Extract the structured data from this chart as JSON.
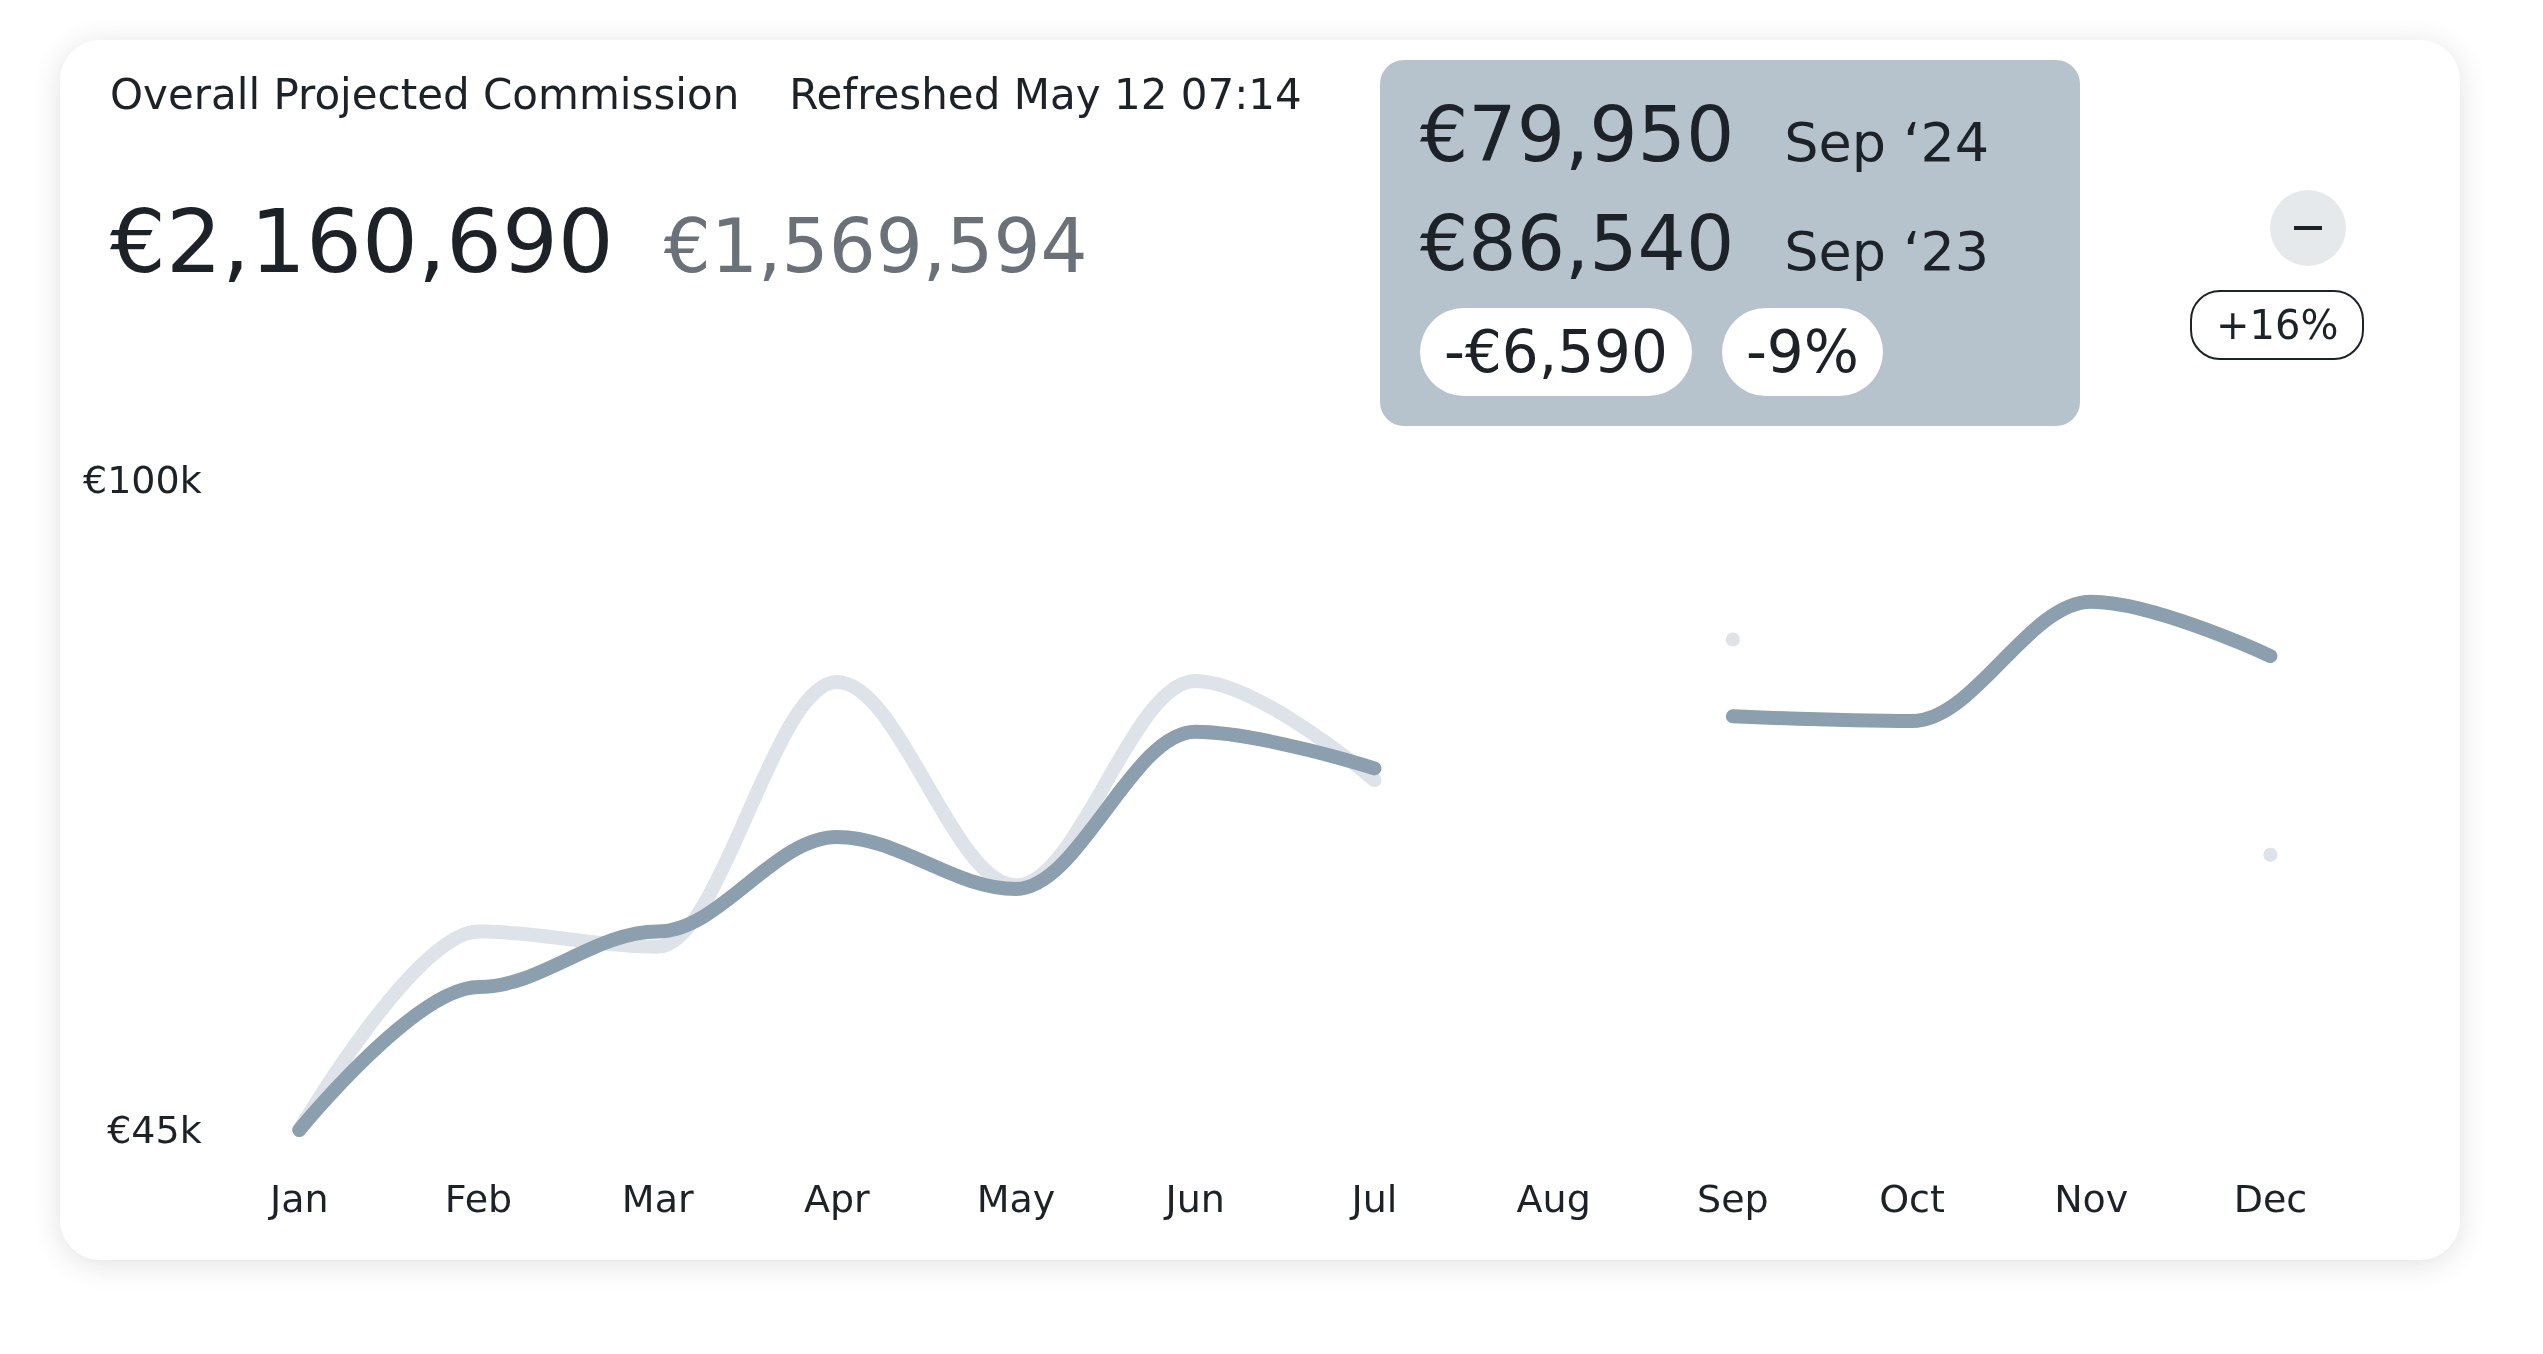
{
  "chart_data": {
    "type": "line",
    "title": "Overall Projected Commission",
    "annotations": [
      "Refreshed May 12 07:14",
      "€2,160,690",
      "€1,569,594",
      "+16%",
      "€79,950",
      "Sep ‘24",
      "€86,540",
      "Sep ‘23",
      "-€6,590",
      "-9%"
    ],
    "categories": [
      "Jan",
      "Feb",
      "Mar",
      "Apr",
      "May",
      "Jun",
      "Jul",
      "Aug",
      "Sep",
      "Oct",
      "Nov",
      "Dec"
    ],
    "series": [
      {
        "color": "#dde3e9",
        "values": [
          45,
          61.8,
          60.5,
          82.9,
          65.7,
          83,
          74.6,
          null,
          86.5,
          null,
          null,
          68.3
        ]
      },
      {
        "color": "#8b9fae",
        "values": [
          45,
          57.1,
          61.8,
          69.8,
          65.4,
          78.7,
          75.6,
          null,
          80.0,
          79.6,
          89.7,
          85.1
        ]
      }
    ],
    "ylim": [
      45,
      100
    ],
    "yticks": [
      {
        "value": 100,
        "label": "€100k"
      },
      {
        "value": 45,
        "label": "€45k"
      }
    ],
    "grid": false,
    "marker": "none",
    "line_style": "solid"
  }
}
